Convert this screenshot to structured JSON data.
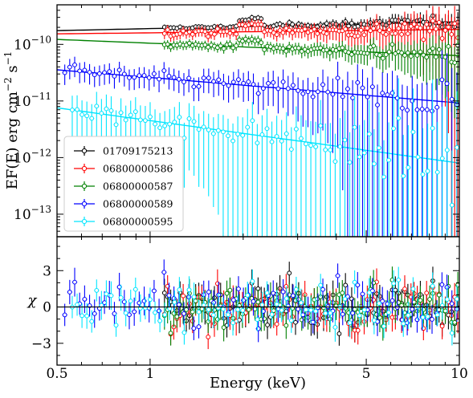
{
  "chart_data": [
    {
      "type": "scatter",
      "panel": "top",
      "xlabel": "",
      "ylabel": "EF(E) erg cm^-2 s^-1",
      "ylabel_parts": {
        "main": "EF(E) erg cm",
        "exp1": "−2",
        "mid": " s",
        "exp2": "−1"
      },
      "x_scale": "log",
      "y_scale": "log",
      "xlim": [
        0.5,
        10
      ],
      "ylim": [
        4e-14,
        5e-10
      ],
      "y_ticks": [
        {
          "value": 1e-10,
          "base": "10",
          "exp": "−10"
        },
        {
          "value": 1e-11,
          "base": "10",
          "exp": "−11"
        },
        {
          "value": 1e-12,
          "base": "10",
          "exp": "−12"
        },
        {
          "value": 1e-13,
          "base": "10",
          "exp": "−13"
        }
      ],
      "legend_position": "lower-left",
      "series": [
        {
          "name": "01709175213",
          "color": "#000000",
          "model": {
            "a": 1.9e-10,
            "b": 0.12
          },
          "x_range": [
            1.1,
            10
          ],
          "line_range": [
            0.5,
            10
          ],
          "scatter": 0.05
        },
        {
          "name": "06800000586",
          "color": "#ff0000",
          "model": {
            "a": 1.6e-10,
            "b": 0.06
          },
          "x_range": [
            1.1,
            10
          ],
          "line_range": [
            0.5,
            10
          ],
          "scatter": 0.09
        },
        {
          "name": "06800000587",
          "color": "#008000",
          "model": {
            "a": 1.05e-10,
            "b": -0.22
          },
          "x_range": [
            1.1,
            10
          ],
          "line_range": [
            0.5,
            10
          ],
          "scatter": 0.08
        },
        {
          "name": "06800000589",
          "color": "#0000ff",
          "model": {
            "a": 2.6e-11,
            "b": -0.45
          },
          "x_range": [
            0.52,
            10
          ],
          "line_range": [
            0.5,
            10
          ],
          "scatter": 0.16
        },
        {
          "name": "06800000595",
          "color": "#00e5ff",
          "model": {
            "a": 4.5e-12,
            "b": -0.75
          },
          "x_range": [
            0.55,
            10
          ],
          "line_range": [
            0.5,
            10
          ],
          "scatter": 0.28
        }
      ]
    },
    {
      "type": "scatter",
      "panel": "bottom",
      "xlabel": "Energy (keV)",
      "ylabel": "χ",
      "x_scale": "log",
      "xlim": [
        0.5,
        10
      ],
      "ylim": [
        -4.8,
        5.8
      ],
      "x_ticks": [
        {
          "value": 0.5,
          "label": "0.5"
        },
        {
          "value": 1,
          "label": "1"
        },
        {
          "value": 5,
          "label": "5"
        },
        {
          "value": 10,
          "label": "10"
        }
      ],
      "y_ticks": [
        {
          "value": 3,
          "label": "3"
        },
        {
          "value": 0,
          "label": "0"
        },
        {
          "value": -3,
          "label": "−3"
        }
      ],
      "reference_line": 0
    }
  ]
}
